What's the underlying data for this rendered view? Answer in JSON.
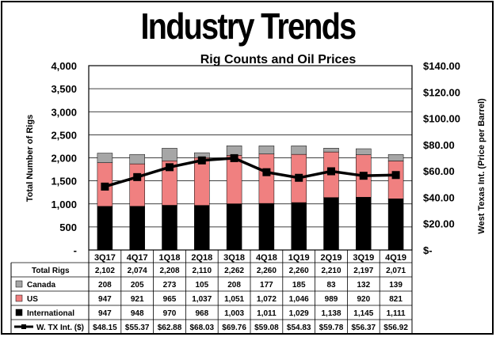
{
  "page": {
    "main_title": "Industry Trends"
  },
  "chart_data": {
    "type": "bar",
    "stacked": true,
    "title": "Rig Counts and Oil Prices",
    "ylabel_left": "Total Number of Rigs",
    "ylabel_right": "West Texas Int. (Price per Barrel)",
    "left_ticks": [
      "4,000",
      "3,500",
      "3,000",
      "2,500",
      "2,000",
      "1,500",
      "1,000",
      "500",
      "-"
    ],
    "right_ticks": [
      "$140.00",
      "$120.00",
      "$100.00",
      "$80.00",
      "$60.00",
      "$40.00",
      "$20.00",
      "$-"
    ],
    "ylim_left": [
      0,
      4000
    ],
    "ylim_right": [
      0,
      140
    ],
    "categories": [
      "3Q17",
      "4Q17",
      "1Q18",
      "2Q18",
      "3Q18",
      "4Q18",
      "1Q19",
      "2Q19",
      "3Q19",
      "4Q19"
    ],
    "series": [
      {
        "name": "International",
        "axis": "left",
        "color": "#000000",
        "values": [
          947,
          948,
          970,
          968,
          1003,
          1011,
          1029,
          1138,
          1145,
          1111
        ],
        "labels": [
          "947",
          "948",
          "970",
          "968",
          "1,003",
          "1,011",
          "1,029",
          "1,138",
          "1,145",
          "1,111"
        ]
      },
      {
        "name": "US",
        "axis": "left",
        "color": "#f08080",
        "values": [
          947,
          921,
          965,
          1037,
          1051,
          1072,
          1046,
          989,
          920,
          821
        ],
        "labels": [
          "947",
          "921",
          "965",
          "1,037",
          "1,051",
          "1,072",
          "1,046",
          "989",
          "920",
          "821"
        ]
      },
      {
        "name": "Canada",
        "axis": "left",
        "color": "#a6a6a6",
        "values": [
          208,
          205,
          273,
          105,
          208,
          177,
          185,
          83,
          132,
          139
        ],
        "labels": [
          "208",
          "205",
          "273",
          "105",
          "208",
          "177",
          "185",
          "83",
          "132",
          "139"
        ]
      },
      {
        "name": "W. TX Int. ($)",
        "axis": "right",
        "type": "line",
        "color": "#000000",
        "values": [
          48.15,
          55.37,
          62.88,
          68.03,
          69.76,
          59.08,
          54.83,
          59.78,
          56.37,
          56.92
        ],
        "labels": [
          "$48.15",
          "$55.37",
          "$62.88",
          "$68.03",
          "$69.76",
          "$59.08",
          "$54.83",
          "$59.78",
          "$56.37",
          "$56.92"
        ]
      }
    ],
    "totals": {
      "name": "Total Rigs",
      "values": [
        2102,
        2074,
        2208,
        2110,
        2262,
        2260,
        2260,
        2210,
        2197,
        2071
      ],
      "labels": [
        "2,102",
        "2,074",
        "2,208",
        "2,110",
        "2,262",
        "2,260",
        "2,260",
        "2,210",
        "2,197",
        "2,071"
      ]
    },
    "grid": true,
    "legend": "data-table"
  }
}
